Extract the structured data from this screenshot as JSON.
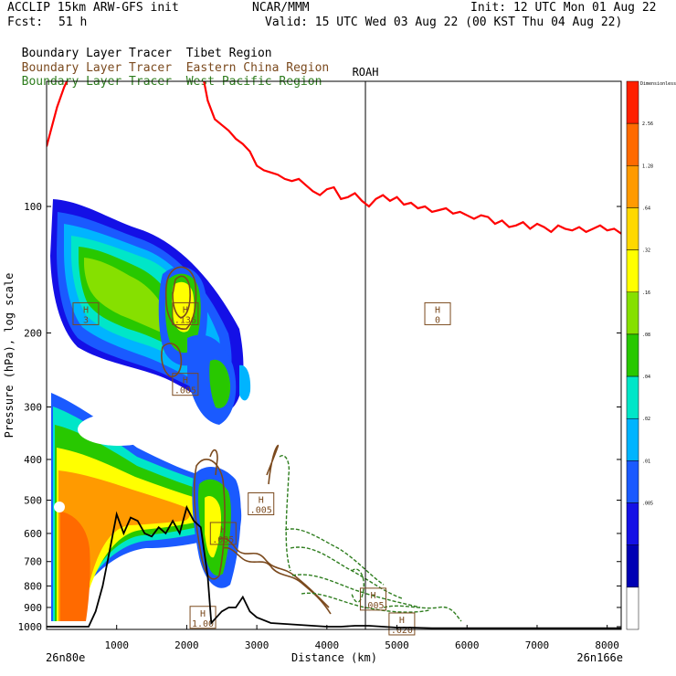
{
  "header": {
    "model": "ACCLIP 15km ARW-GFS init",
    "fcst_label": "Fcst:",
    "fcst_value": "51 h",
    "org": "NCAR/MMM",
    "init": "Init: 12 UTC Mon 01 Aug 22",
    "valid": "Valid: 15 UTC Wed 03 Aug 22 (00 KST Thu 04 Aug 22)"
  },
  "legend": [
    {
      "prefix": "Boundary Layer Tracer",
      "region": "Tibet Region",
      "color": "#000000"
    },
    {
      "prefix": "Boundary Layer Tracer",
      "region": "Eastern China Region",
      "color": "#7b4a1e"
    },
    {
      "prefix": "Boundary Layer Tracer",
      "region": "West Pacific Region",
      "color": "#2e7d1e"
    }
  ],
  "chart_data": {
    "type": "heatmap",
    "xlabel": "Distance (km)",
    "ylabel": "Pressure (hPa), log scale",
    "x_ticks": [
      "1000",
      "2000",
      "3000",
      "4000",
      "5000",
      "6000",
      "7000",
      "8000"
    ],
    "y_ticks": [
      "100",
      "200",
      "300",
      "400",
      "500",
      "600",
      "700",
      "800",
      "900",
      "1000"
    ],
    "xlim": [
      0,
      8200
    ],
    "y_scale": "log",
    "endpoint_left": "26n80e",
    "endpoint_right": "26n166e",
    "station": {
      "name": "ROAH",
      "distance_km": 4550
    },
    "colorbar": {
      "title": "Dimensionless",
      "levels": [
        "2.56",
        "1.28",
        ".64",
        ".32",
        ".16",
        ".08",
        ".04",
        ".02",
        ".01",
        ".005"
      ],
      "colors": [
        "#ff2000",
        "#ff6a00",
        "#ff9a00",
        "#ffd800",
        "#ffff00",
        "#86e000",
        "#28c800",
        "#00e6c8",
        "#00b4ff",
        "#1a5aff",
        "#1410e6",
        "#0000b4",
        "#ffffff"
      ]
    },
    "tropopause": {
      "color": "#ff0000",
      "x": [
        0,
        150,
        250,
        350,
        450,
        550,
        650,
        750,
        850,
        950,
        1050,
        1150,
        1250,
        1350,
        1500,
        1650,
        1800,
        1950,
        2050,
        2200,
        2300,
        2400,
        2500,
        2600,
        2700,
        2800,
        2900,
        3000,
        3100,
        3200,
        3300,
        3400,
        3500,
        3600,
        3700,
        3800,
        3900,
        4000,
        4100,
        4200,
        4300,
        4400,
        4500,
        4600,
        4700,
        4800,
        4900,
        5000,
        5100,
        5200,
        5300,
        5400,
        5500,
        5600,
        5700,
        5800,
        5900,
        6000,
        6100,
        6200,
        6300,
        6400,
        6500,
        6600,
        6700,
        6800,
        6900,
        7000,
        7100,
        7200,
        7300,
        7400,
        7500,
        7600,
        7700,
        7800,
        7900,
        8000,
        8100,
        8200
      ],
      "p": [
        72,
        58,
        52,
        48,
        46,
        45,
        46,
        47,
        48,
        49,
        50,
        46,
        47,
        48,
        49,
        50,
        47,
        44,
        42,
        46,
        56,
        62,
        64,
        66,
        69,
        71,
        74,
        80,
        82,
        83,
        84,
        86,
        87,
        86,
        89,
        92,
        94,
        91,
        90,
        96,
        95,
        93,
        97,
        100,
        96,
        94,
        97,
        95,
        99,
        98,
        101,
        100,
        103,
        102,
        101,
        104,
        103,
        105,
        107,
        105,
        106,
        110,
        108,
        112,
        111,
        109,
        113,
        110,
        112,
        115,
        111,
        113,
        114,
        112,
        115,
        113,
        111,
        114,
        113,
        116
      ]
    },
    "terrain": {
      "color": "#000000",
      "x": [
        0,
        100,
        200,
        300,
        400,
        500,
        600,
        700,
        800,
        900,
        1000,
        1100,
        1200,
        1300,
        1400,
        1500,
        1600,
        1700,
        1800,
        1900,
        2000,
        2100,
        2200,
        2300,
        2350,
        2400,
        2500,
        2600,
        2700,
        2800,
        2900,
        3000,
        3200,
        3400,
        3600,
        3800,
        4000,
        4200,
        4400,
        4600,
        4800,
        5000,
        5200,
        5500,
        6000,
        7000,
        8200
      ],
      "p": [
        1000,
        1000,
        1000,
        1000,
        1000,
        1000,
        1000,
        920,
        800,
        660,
        540,
        600,
        550,
        560,
        600,
        610,
        580,
        600,
        560,
        600,
        520,
        560,
        580,
        760,
        980,
        960,
        920,
        900,
        900,
        850,
        920,
        950,
        980,
        985,
        990,
        995,
        1000,
        1000,
        995,
        995,
        1000,
        1005,
        1005,
        1008,
        1008,
        1008,
        1008
      ]
    },
    "highs": [
      {
        "label": "H",
        "value": "3",
        "x": 560,
        "p": 180
      },
      {
        "label": "H",
        "value": ".136",
        "x": 1980,
        "p": 180
      },
      {
        "label": "H",
        "value": "0",
        "x": 5580,
        "p": 180
      },
      {
        "label": "H",
        "value": ".005",
        "x": 1980,
        "p": 265
      },
      {
        "label": "H",
        "value": ".005",
        "x": 2520,
        "p": 600
      },
      {
        "label": "H",
        "value": ".005",
        "x": 3060,
        "p": 510
      },
      {
        "label": "H",
        "value": ".005",
        "x": 4660,
        "p": 860
      },
      {
        "label": "H",
        "value": "1.00",
        "x": 2230,
        "p": 950
      },
      {
        "label": "H",
        "value": ".020",
        "x": 5070,
        "p": 985
      }
    ]
  }
}
